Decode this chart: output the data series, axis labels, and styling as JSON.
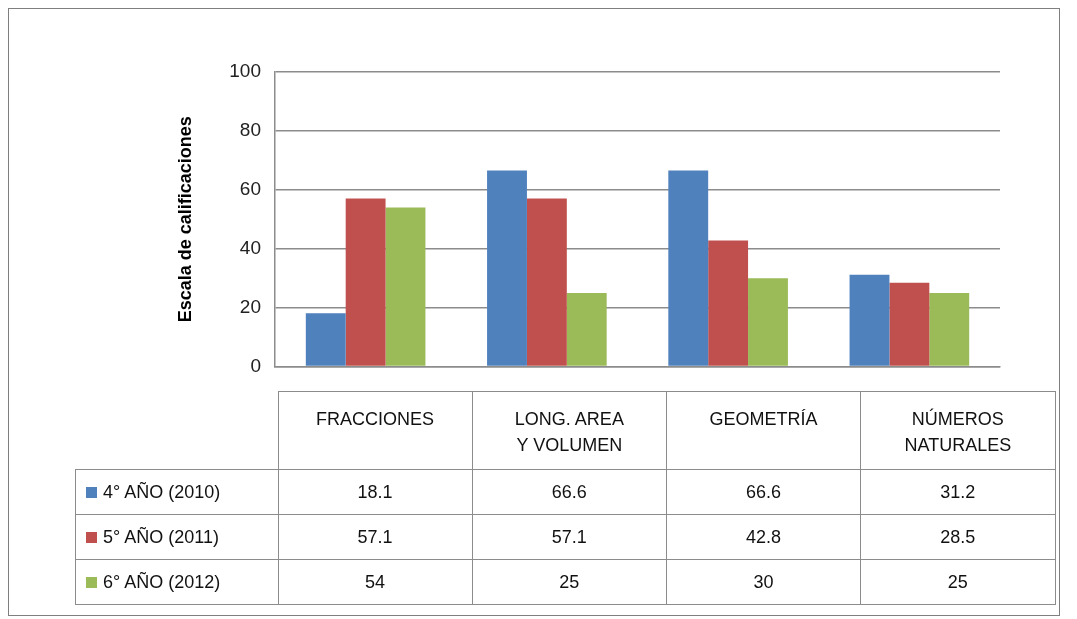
{
  "chart_data": {
    "type": "bar",
    "ylabel": "Escala de calificaciones",
    "categories": [
      "FRACCIONES",
      "LONG. AREA Y VOLUMEN",
      "GEOMETRÍA",
      "NÚMEROS NATURALES"
    ],
    "series": [
      {
        "name": "4° AÑO (2010)",
        "color": "#4f81bd",
        "values": [
          18.1,
          66.6,
          66.6,
          31.2
        ]
      },
      {
        "name": "5° AÑO (2011)",
        "color": "#c0504d",
        "values": [
          57.1,
          57.1,
          42.8,
          28.5
        ]
      },
      {
        "name": "6° AÑO (2012)",
        "color": "#9bbb59",
        "values": [
          54,
          25,
          30,
          25
        ]
      }
    ],
    "ylim": [
      0,
      100
    ],
    "yticks": [
      0,
      20,
      40,
      60,
      80,
      100
    ],
    "grid": "y",
    "legend": "bottom left",
    "data_labels": true
  }
}
